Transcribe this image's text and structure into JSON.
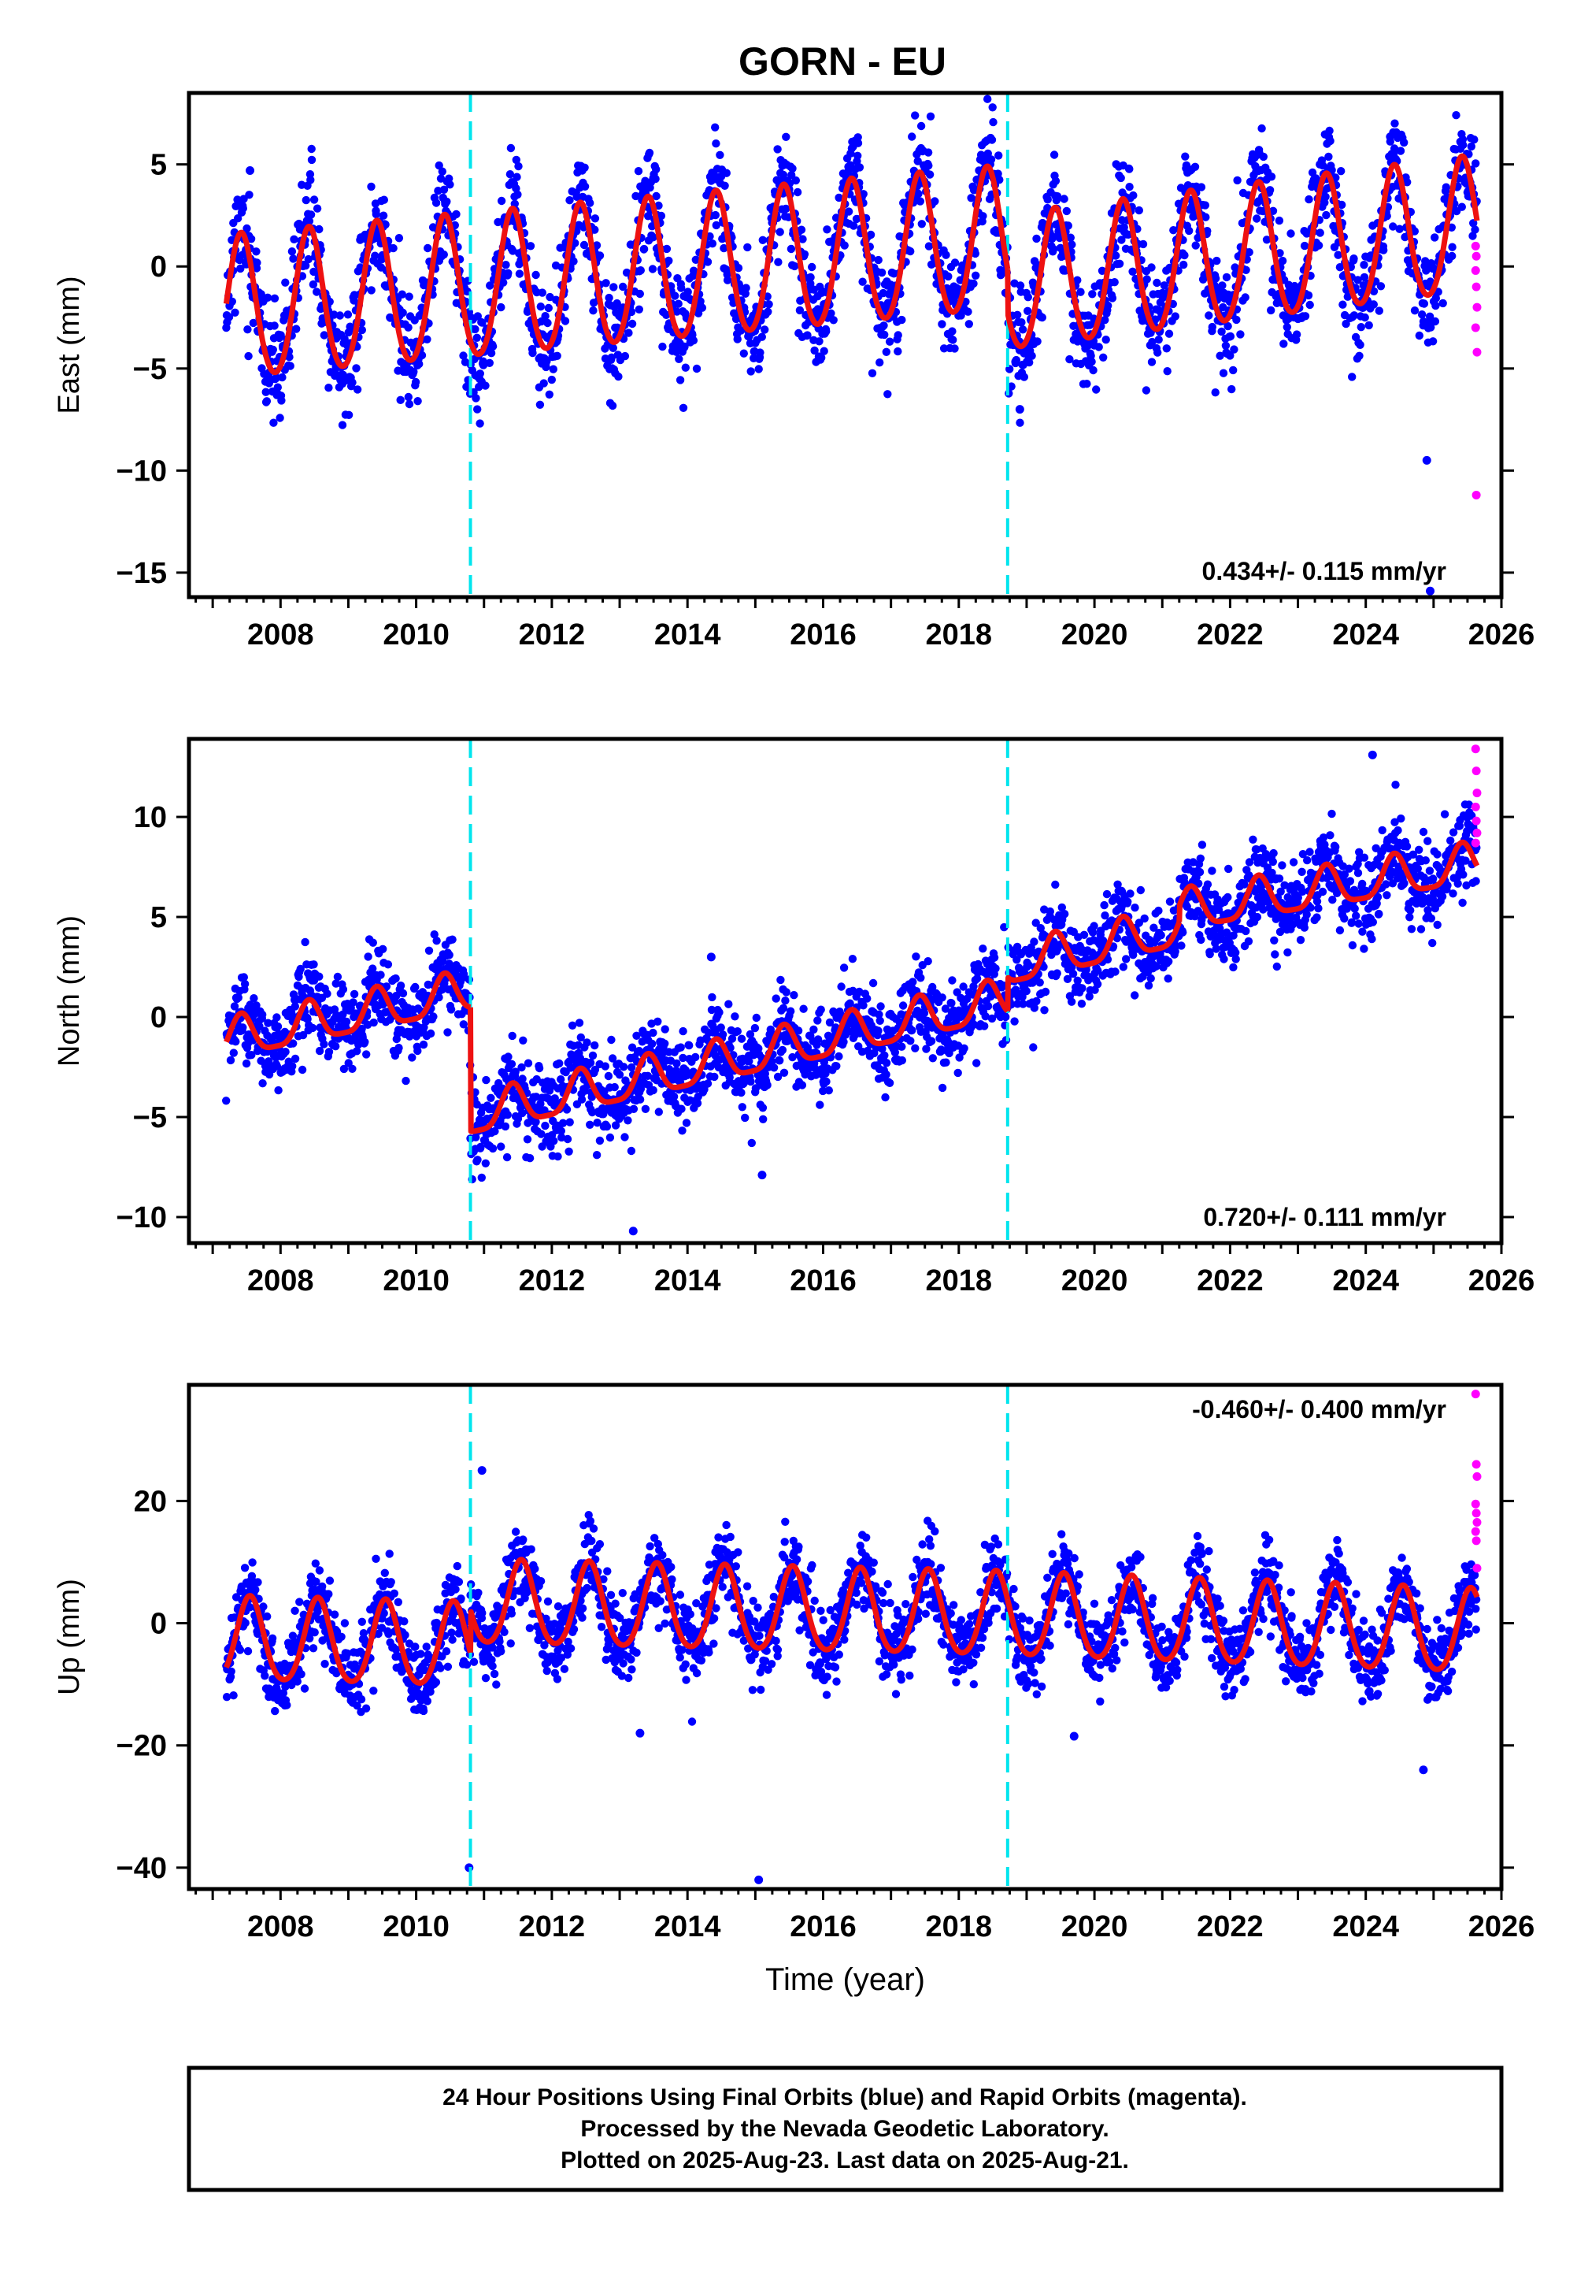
{
  "title": "GORN - EU",
  "colors": {
    "final_orbits": "#0000ff",
    "rapid_orbits": "#ff00ff",
    "model": "#ee1111",
    "offset_lines": "#00e5ee",
    "frame": "#000000"
  },
  "chart_data": [
    {
      "type": "scatter",
      "panel": "east",
      "xlabel": "",
      "ylabel": "East (mm)",
      "xlim": [
        2006.65,
        2026.0
      ],
      "ylim": [
        -16.2,
        8.5
      ],
      "xticks": [
        2008,
        2010,
        2012,
        2014,
        2016,
        2018,
        2020,
        2022,
        2024,
        2026
      ],
      "yticks": [
        -15,
        -10,
        -5,
        0,
        5
      ],
      "rate_label": "0.434+/- 0.115 mm/yr",
      "rate_position": "bottom-right",
      "offset_lines_x": [
        2010.8,
        2018.72
      ],
      "data_span": [
        2007.2,
        2025.64
      ],
      "model_segments": [
        {
          "start": 2007.2,
          "end": 2018.72,
          "trend_start": -2.2,
          "trend_end": 1.2,
          "amplitude": 3.5,
          "peak_phase": 0.42,
          "semiannual_amplitude": 0.3
        },
        {
          "start": 2018.72,
          "end": 2025.64,
          "trend_start": -1.0,
          "trend_end": 1.9,
          "amplitude": 3.3,
          "peak_phase": 0.42,
          "semiannual_amplitude": 0.3
        }
      ],
      "scatter": {
        "count": 2600,
        "noise_sd": 1.35,
        "seed": 11
      },
      "outliers": [
        [
          2007.55,
          4.7
        ],
        [
          2018.9,
          -7.0
        ],
        [
          2024.9,
          -9.5
        ],
        [
          2024.95,
          -15.9
        ]
      ],
      "rapid_points": [
        [
          2025.62,
          -0.2
        ],
        [
          2025.63,
          -1.0
        ],
        [
          2025.64,
          -2.0
        ],
        [
          2025.62,
          -3.0
        ],
        [
          2025.64,
          -4.2
        ],
        [
          2025.63,
          -11.2
        ],
        [
          2025.62,
          1.0
        ],
        [
          2025.63,
          0.5
        ]
      ]
    },
    {
      "type": "scatter",
      "panel": "north",
      "xlabel": "",
      "ylabel": "North (mm)",
      "xlim": [
        2006.65,
        2026.0
      ],
      "ylim": [
        -11.3,
        13.9
      ],
      "xticks": [
        2008,
        2010,
        2012,
        2014,
        2016,
        2018,
        2020,
        2022,
        2024,
        2026
      ],
      "yticks": [
        -10,
        -5,
        0,
        5,
        10
      ],
      "rate_label": "0.720+/- 0.111 mm/yr",
      "rate_position": "bottom-right",
      "offset_lines_x": [
        2010.8,
        2018.72
      ],
      "data_span": [
        2007.2,
        2025.64
      ],
      "model_segments": [
        {
          "start": 2007.2,
          "end": 2010.8,
          "trend_start": -1.2,
          "trend_end": 1.2,
          "amplitude": 1.0,
          "peak_phase": 0.42,
          "semiannual_amplitude": 0.25
        },
        {
          "start": 2010.8,
          "end": 2018.72,
          "trend_start": -5.0,
          "trend_end": 0.8,
          "amplitude": 1.0,
          "peak_phase": 0.42,
          "semiannual_amplitude": 0.25
        },
        {
          "start": 2018.72,
          "end": 2021.25,
          "trend_start": 2.5,
          "trend_end": 4.4,
          "amplitude": 1.0,
          "peak_phase": 0.42,
          "semiannual_amplitude": 0.25
        },
        {
          "start": 2021.25,
          "end": 2025.64,
          "trend_start": 5.2,
          "trend_end": 7.6,
          "amplitude": 1.0,
          "peak_phase": 0.42,
          "semiannual_amplitude": 0.25
        }
      ],
      "scatter": {
        "count": 2600,
        "noise_sd": 1.05,
        "seed": 23
      },
      "outliers": [
        [
          2013.2,
          -10.7
        ],
        [
          2015.1,
          -7.9
        ],
        [
          2014.35,
          3.0
        ],
        [
          2024.1,
          13.1
        ]
      ],
      "rapid_points": [
        [
          2025.62,
          13.4
        ],
        [
          2025.63,
          12.3
        ],
        [
          2025.64,
          11.2
        ],
        [
          2025.62,
          10.5
        ],
        [
          2025.63,
          9.8
        ],
        [
          2025.64,
          9.2
        ],
        [
          2025.62,
          8.7
        ]
      ]
    },
    {
      "type": "scatter",
      "panel": "up",
      "xlabel": "Time (year)",
      "ylabel": "Up (mm)",
      "xlim": [
        2006.65,
        2026.0
      ],
      "ylim": [
        -43.5,
        39.0
      ],
      "xticks": [
        2008,
        2010,
        2012,
        2014,
        2016,
        2018,
        2020,
        2022,
        2024,
        2026
      ],
      "yticks": [
        -40,
        -20,
        0,
        20
      ],
      "rate_label": "-0.460+/- 0.400 mm/yr",
      "rate_position": "top-right",
      "offset_lines_x": [
        2010.8,
        2018.72
      ],
      "data_span": [
        2007.2,
        2025.64
      ],
      "model_segments": [
        {
          "start": 2007.2,
          "end": 2010.8,
          "trend_start": -3.0,
          "trend_end": -4.0,
          "amplitude": 6.8,
          "peak_phase": 0.55,
          "semiannual_amplitude": 0.8
        },
        {
          "start": 2010.8,
          "end": 2018.72,
          "trend_start": 3.0,
          "trend_end": 1.0,
          "amplitude": 6.8,
          "peak_phase": 0.55,
          "semiannual_amplitude": 0.8
        },
        {
          "start": 2018.72,
          "end": 2025.64,
          "trend_start": 1.0,
          "trend_end": -1.8,
          "amplitude": 6.8,
          "peak_phase": 0.55,
          "semiannual_amplitude": 0.8
        }
      ],
      "scatter": {
        "count": 2600,
        "noise_sd": 3.3,
        "seed": 37
      },
      "outliers": [
        [
          2010.78,
          -40.0
        ],
        [
          2015.05,
          -42.0
        ],
        [
          2010.97,
          25.0
        ],
        [
          2024.85,
          -24.0
        ],
        [
          2013.3,
          -18.0
        ],
        [
          2019.7,
          -18.5
        ]
      ],
      "rapid_points": [
        [
          2025.62,
          37.5
        ],
        [
          2025.63,
          26.0
        ],
        [
          2025.64,
          24.0
        ],
        [
          2025.62,
          19.5
        ],
        [
          2025.63,
          18.0
        ],
        [
          2025.64,
          16.5
        ],
        [
          2025.62,
          15.0
        ],
        [
          2025.63,
          13.5
        ],
        [
          2025.64,
          9.0
        ]
      ]
    }
  ],
  "footer": {
    "line1": "24 Hour Positions Using Final Orbits (blue) and Rapid Orbits (magenta).",
    "line2": "Processed by the Nevada Geodetic Laboratory.",
    "line3": "Plotted on 2025-Aug-23. Last data on 2025-Aug-21."
  }
}
